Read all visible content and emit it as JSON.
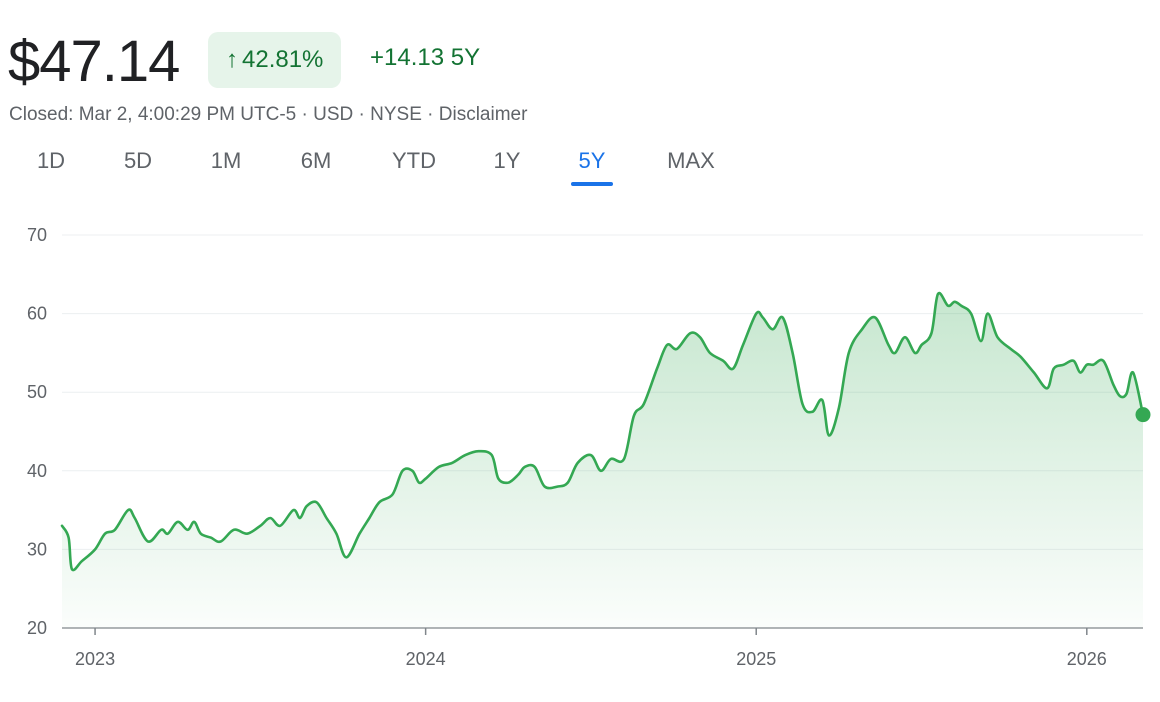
{
  "quote": {
    "price": "$47.14",
    "change_percent": "42.81%",
    "change_abs": "+14.13",
    "period_label": "5Y",
    "meta": {
      "status": "Closed: Mar 2, 4:00:29 PM UTC-5",
      "currency": "USD",
      "exchange": "NYSE",
      "disclaimer": "Disclaimer"
    },
    "accent_color": "#137333",
    "badge_bg": "#e6f4ea"
  },
  "tabs": [
    {
      "label": "1D",
      "active": false
    },
    {
      "label": "5D",
      "active": false
    },
    {
      "label": "1M",
      "active": false
    },
    {
      "label": "6M",
      "active": false
    },
    {
      "label": "YTD",
      "active": false
    },
    {
      "label": "1Y",
      "active": false
    },
    {
      "label": "5Y",
      "active": true
    },
    {
      "label": "MAX",
      "active": false
    }
  ],
  "chart_data": {
    "type": "area",
    "title": "",
    "xlabel": "",
    "ylabel": "",
    "ylim": [
      20,
      70
    ],
    "yticks": [
      20,
      30,
      40,
      50,
      60,
      70
    ],
    "xlim": [
      2022.9,
      2026.17
    ],
    "xticks": [
      {
        "value": 2023,
        "label": "2023"
      },
      {
        "value": 2024,
        "label": "2024"
      },
      {
        "value": 2025,
        "label": "2025"
      },
      {
        "value": 2026,
        "label": "2026"
      }
    ],
    "grid": true,
    "line_color": "#34a853",
    "series": [
      {
        "x": [
          2022.9,
          2022.92,
          2022.93,
          2022.96,
          2023.0,
          2023.03,
          2023.06,
          2023.1,
          2023.12,
          2023.16,
          2023.2,
          2023.22,
          2023.25,
          2023.28,
          2023.3,
          2023.32,
          2023.35,
          2023.38,
          2023.42,
          2023.46,
          2023.5,
          2023.53,
          2023.56,
          2023.6,
          2023.62,
          2023.64,
          2023.67,
          2023.7,
          2023.73,
          2023.76,
          2023.8,
          2023.83,
          2023.86,
          2023.9,
          2023.93,
          2023.96,
          2023.98,
          2024.0,
          2024.04,
          2024.08,
          2024.12,
          2024.16,
          2024.2,
          2024.22,
          2024.25,
          2024.28,
          2024.3,
          2024.33,
          2024.36,
          2024.4,
          2024.43,
          2024.46,
          2024.5,
          2024.53,
          2024.56,
          2024.6,
          2024.63,
          2024.66,
          2024.7,
          2024.73,
          2024.76,
          2024.8,
          2024.83,
          2024.86,
          2024.9,
          2024.93,
          2024.96,
          2025.0,
          2025.02,
          2025.05,
          2025.08,
          2025.11,
          2025.14,
          2025.17,
          2025.2,
          2025.22,
          2025.25,
          2025.28,
          2025.32,
          2025.36,
          2025.4,
          2025.42,
          2025.45,
          2025.48,
          2025.5,
          2025.53,
          2025.55,
          2025.58,
          2025.6,
          2025.62,
          2025.65,
          2025.68,
          2025.7,
          2025.73,
          2025.77,
          2025.8,
          2025.84,
          2025.88,
          2025.9,
          2025.93,
          2025.96,
          2025.98,
          2026.0,
          2026.02,
          2026.05,
          2026.08,
          2026.1,
          2026.12,
          2026.14,
          2026.17
        ],
        "y": [
          33.0,
          31.5,
          27.5,
          28.5,
          30.0,
          32.0,
          32.5,
          35.0,
          34.0,
          31.0,
          32.5,
          32.0,
          33.5,
          32.5,
          33.5,
          32.0,
          31.5,
          31.0,
          32.5,
          32.0,
          33.0,
          34.0,
          33.0,
          35.0,
          34.0,
          35.5,
          36.0,
          34.0,
          32.0,
          29.0,
          32.0,
          34.0,
          36.0,
          37.0,
          40.0,
          40.0,
          38.5,
          39.0,
          40.5,
          41.0,
          42.0,
          42.5,
          42.0,
          39.0,
          38.5,
          39.5,
          40.5,
          40.5,
          38.0,
          38.0,
          38.5,
          41.0,
          42.0,
          40.0,
          41.5,
          41.5,
          47.0,
          48.5,
          53.0,
          56.0,
          55.5,
          57.5,
          57.0,
          55.0,
          54.0,
          53.0,
          56.0,
          60.0,
          59.5,
          58.0,
          59.5,
          55.0,
          48.5,
          47.5,
          49.0,
          44.5,
          48.0,
          55.0,
          58.0,
          59.5,
          56.0,
          55.0,
          57.0,
          55.0,
          56.0,
          57.5,
          62.5,
          61.0,
          61.5,
          61.0,
          60.0,
          56.5,
          60.0,
          57.0,
          55.5,
          54.5,
          52.5,
          50.5,
          53.0,
          53.5,
          54.0,
          52.5,
          53.5,
          53.5,
          54.0,
          51.0,
          49.5,
          49.8,
          52.5,
          47.14
        ]
      }
    ],
    "last_value": 47.14
  }
}
